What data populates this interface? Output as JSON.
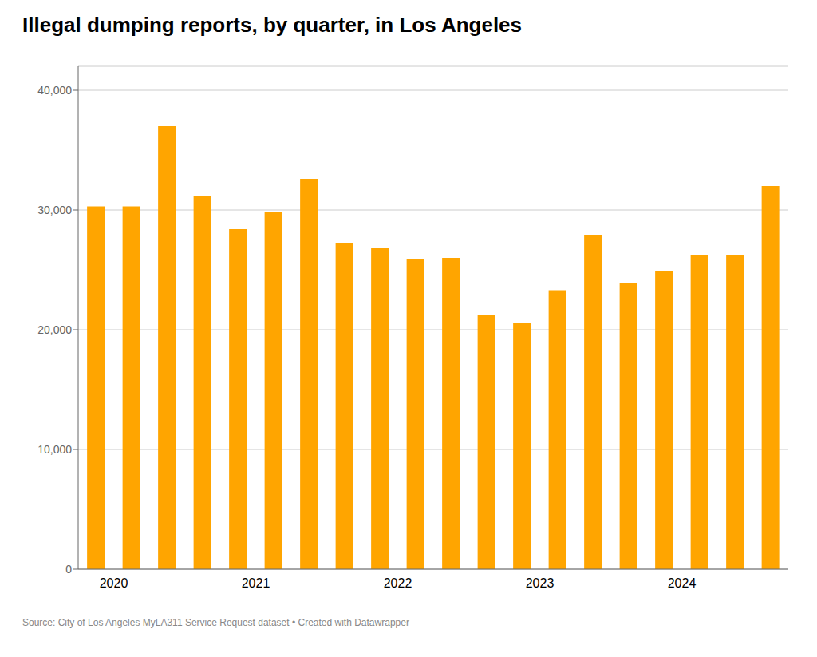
{
  "chart_data": {
    "type": "bar",
    "title": "Illegal dumping reports, by quarter, in Los Angeles",
    "source": "Source: City of Los Angeles MyLA311 Service Request dataset • Created with Datawrapper",
    "categories": [
      "2020",
      null,
      null,
      null,
      "2021",
      null,
      null,
      null,
      "2022",
      null,
      null,
      null,
      "2023",
      null,
      null,
      null,
      "2024",
      null,
      null,
      null
    ],
    "values": [
      30300,
      30300,
      37000,
      31200,
      28400,
      29800,
      32600,
      27200,
      26800,
      25900,
      26000,
      21200,
      20600,
      23300,
      27900,
      23900,
      24900,
      26200,
      26200,
      32000
    ],
    "color": "#FFA500",
    "ylim": [
      0,
      42000
    ],
    "yticks": [
      0,
      {
        "value": 10000,
        "label": "10,000"
      },
      {
        "value": 20000,
        "label": "20,000"
      },
      {
        "value": 30000,
        "label": "30,000"
      },
      {
        "value": 40000,
        "label": "40,000"
      }
    ],
    "grid": true
  }
}
